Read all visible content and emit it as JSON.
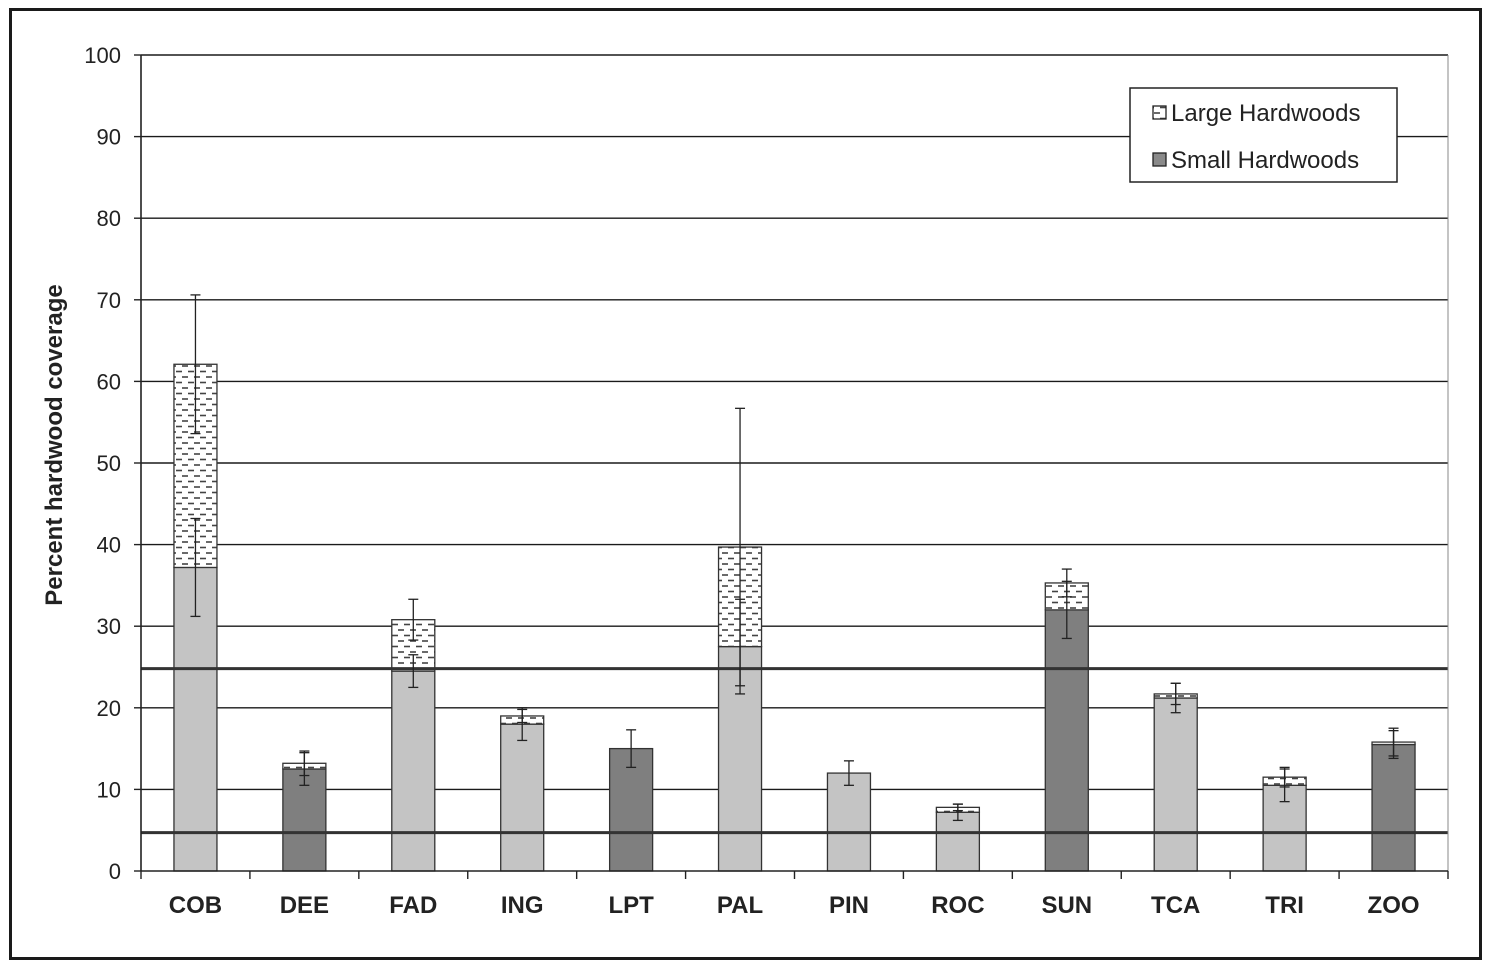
{
  "chart_data": {
    "type": "bar",
    "stacked": true,
    "ylabel": "Percent hardwood coverage",
    "xlabel": "",
    "ylim": [
      0,
      100
    ],
    "yticks": [
      0,
      10,
      20,
      30,
      40,
      50,
      60,
      70,
      80,
      90,
      100
    ],
    "grid": true,
    "legend_position": "top-right",
    "categories": [
      "COB",
      "DEE",
      "FAD",
      "ING",
      "LPT",
      "PAL",
      "PIN",
      "ROC",
      "SUN",
      "TCA",
      "TRI",
      "ZOO"
    ],
    "series": [
      {
        "name": "Small Hardwoods",
        "values": [
          37.2,
          12.5,
          24.5,
          18.0,
          15.0,
          27.5,
          12.0,
          7.2,
          32.0,
          21.2,
          10.5,
          15.5
        ],
        "error": [
          6.0,
          2.0,
          2.0,
          2.0,
          2.3,
          5.8,
          1.5,
          1.0,
          3.5,
          1.8,
          2.0,
          1.7
        ]
      },
      {
        "name": "Large Hardwoods",
        "values": [
          24.9,
          0.7,
          6.3,
          1.0,
          0.0,
          12.2,
          0.0,
          0.6,
          3.3,
          0.5,
          1.0,
          0.3
        ],
        "error": [
          8.5,
          1.5,
          2.5,
          0.8,
          0.0,
          17.0,
          0.0,
          0.4,
          1.7,
          1.3,
          1.2,
          1.7
        ]
      }
    ],
    "bar_shading": [
      "light",
      "dark",
      "light",
      "light",
      "dark",
      "light",
      "light",
      "light",
      "dark",
      "light",
      "light",
      "dark"
    ],
    "reference_lines": [
      24.8,
      4.7
    ],
    "colors": {
      "light_bar": "#c4c4c4",
      "dark_bar": "#7f7f7f",
      "large_fill": "#ffffff",
      "large_dash": "#444444",
      "grid": "#1a1a1a",
      "ref_line": "#333333"
    }
  }
}
